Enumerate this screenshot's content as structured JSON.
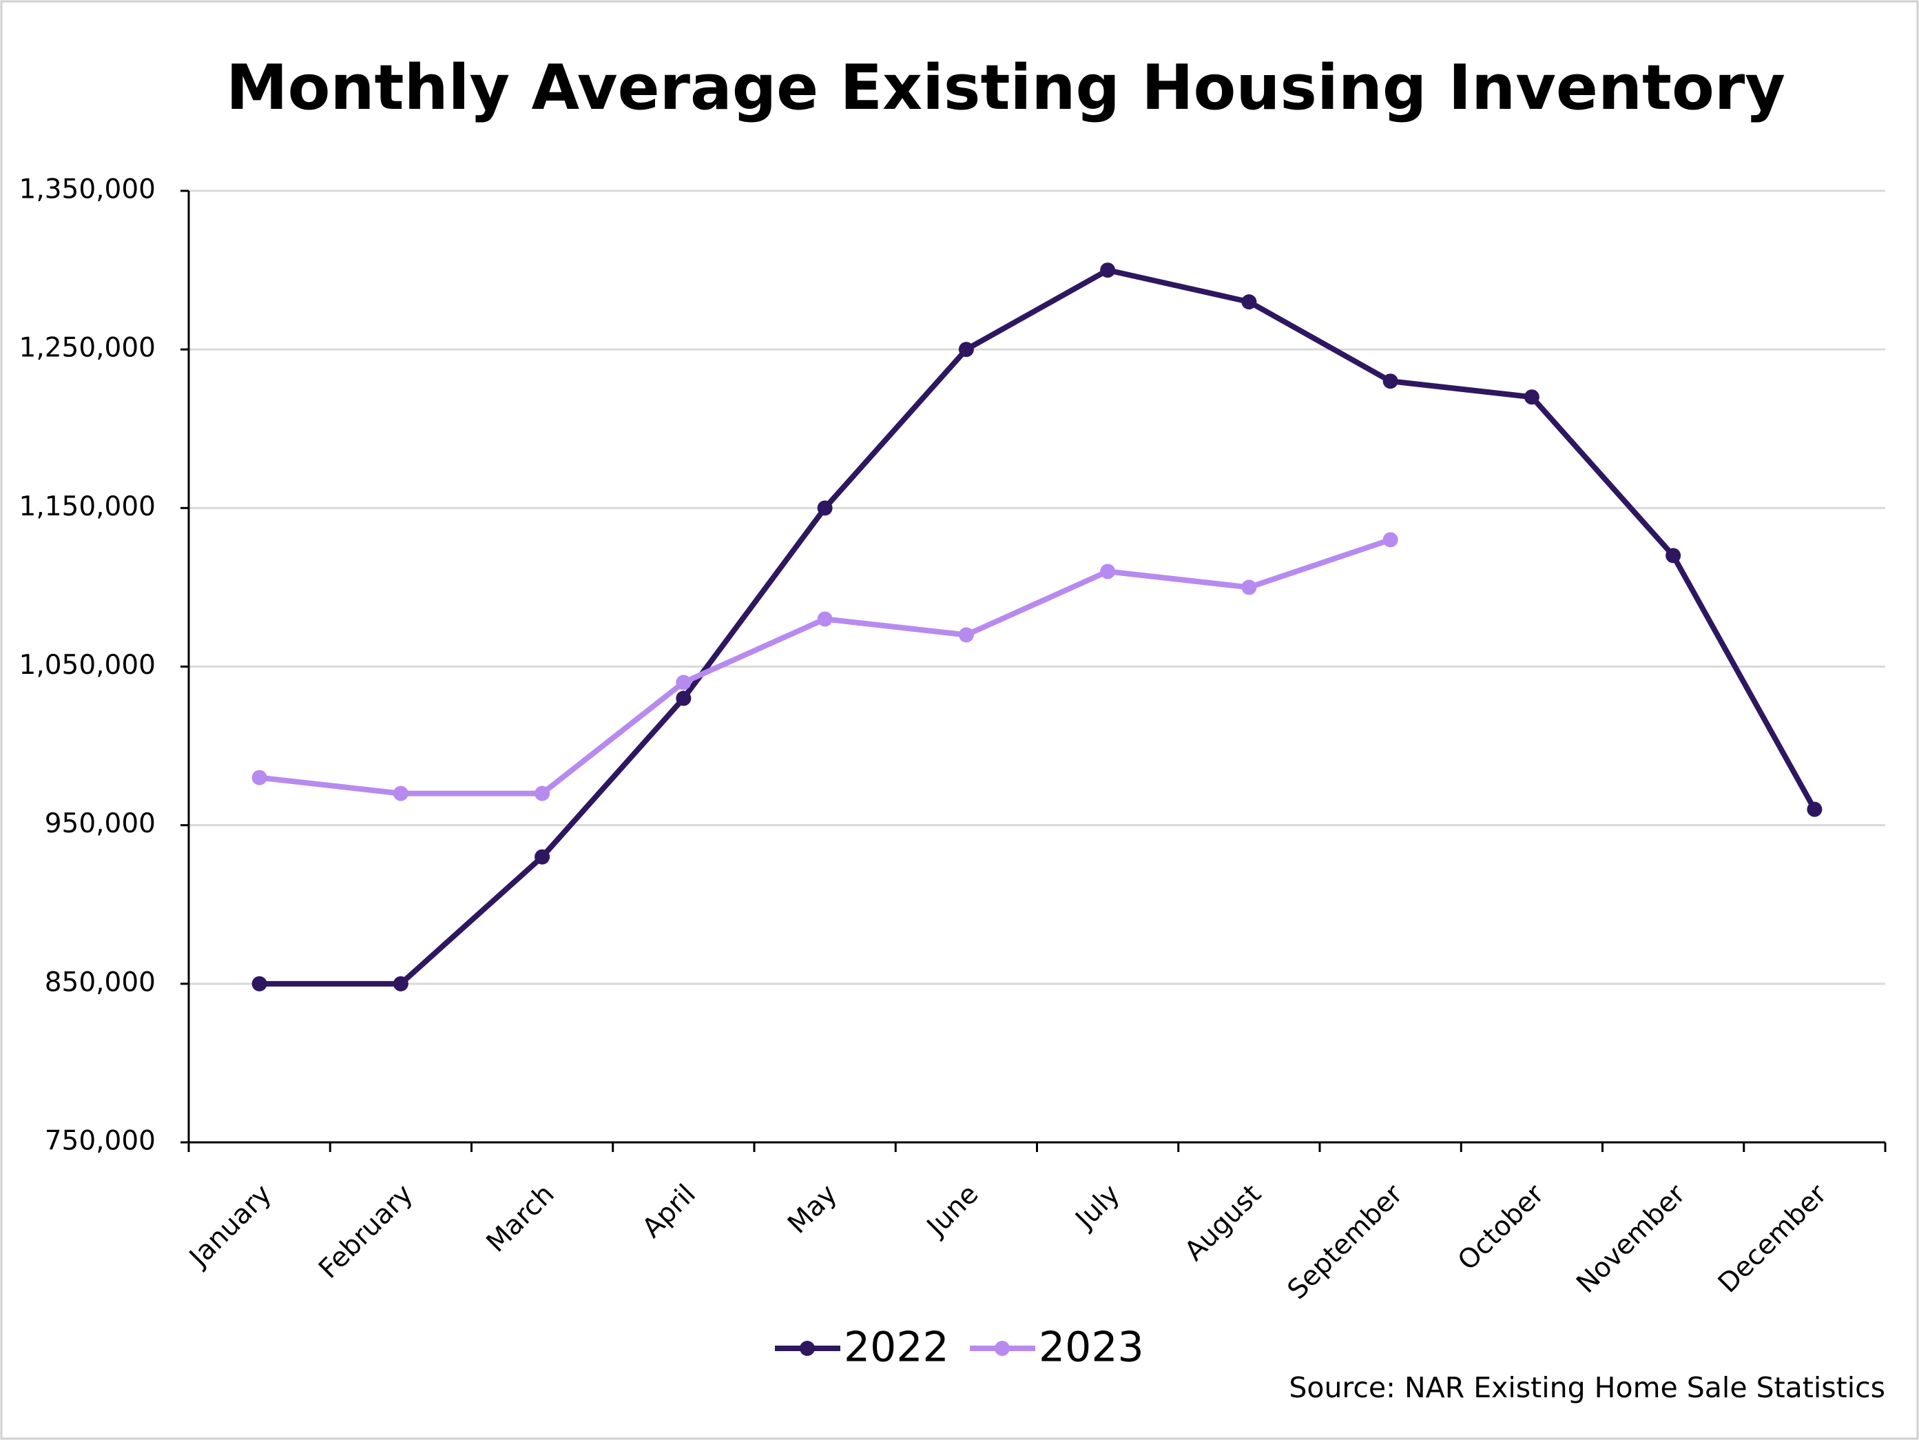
{
  "chart_data": {
    "type": "line",
    "title": "Monthly Average Existing Housing Inventory",
    "categories": [
      "January",
      "February",
      "March",
      "April",
      "May",
      "June",
      "July",
      "August",
      "September",
      "October",
      "November",
      "December"
    ],
    "series": [
      {
        "name": "2022",
        "color": "#2e1760",
        "values": [
          850000,
          850000,
          930000,
          1030000,
          1150000,
          1250000,
          1300000,
          1280000,
          1230000,
          1220000,
          1120000,
          960000
        ]
      },
      {
        "name": "2023",
        "color": "#b78af0",
        "values": [
          980000,
          970000,
          970000,
          1040000,
          1080000,
          1070000,
          1110000,
          1100000,
          1130000,
          null,
          null,
          null
        ]
      }
    ],
    "ylim": [
      750000,
      1350000
    ],
    "yticks": [
      {
        "value": 750000,
        "label": "750,000"
      },
      {
        "value": 850000,
        "label": "850,000"
      },
      {
        "value": 950000,
        "label": "950,000"
      },
      {
        "value": 1050000,
        "label": "1,050,000"
      },
      {
        "value": 1150000,
        "label": "1,150,000"
      },
      {
        "value": 1250000,
        "label": "1,250,000"
      },
      {
        "value": 1350000,
        "label": "1,350,000"
      }
    ],
    "grid": true,
    "legend": "bottom",
    "annotations": [
      "Source: NAR Existing Home Sale Statistics"
    ]
  }
}
